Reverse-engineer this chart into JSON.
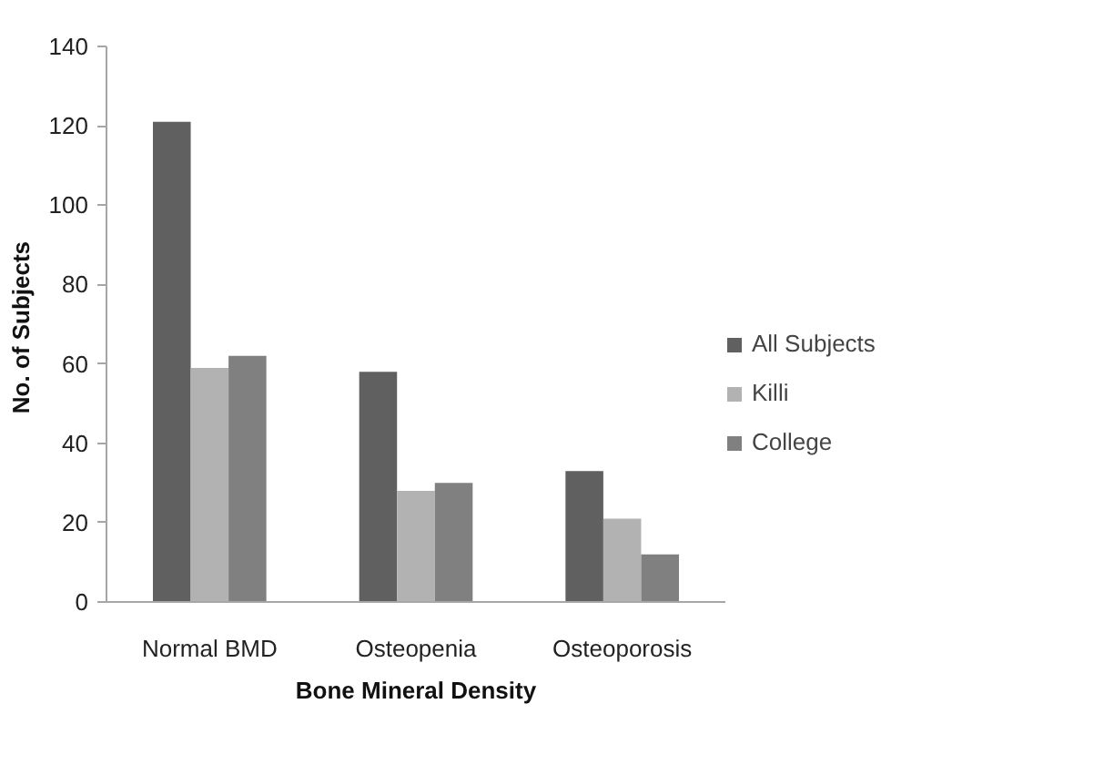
{
  "chart_data": {
    "type": "bar",
    "xlabel": "Bone Mineral Density",
    "ylabel": "No. of  Subjects",
    "categories": [
      "Normal BMD",
      "Osteopenia",
      "Osteoporosis"
    ],
    "series": [
      {
        "name": "All Subjects",
        "color": "#606060",
        "values": [
          121,
          58,
          33
        ]
      },
      {
        "name": "Killi",
        "color": "#b2b2b2",
        "values": [
          59,
          28,
          21
        ]
      },
      {
        "name": "College",
        "color": "#808080",
        "values": [
          62,
          30,
          12
        ]
      }
    ],
    "ylim": [
      0,
      140
    ],
    "yticks": [
      0,
      20,
      40,
      60,
      80,
      100,
      120,
      140
    ],
    "grid": false,
    "legend": "right"
  }
}
